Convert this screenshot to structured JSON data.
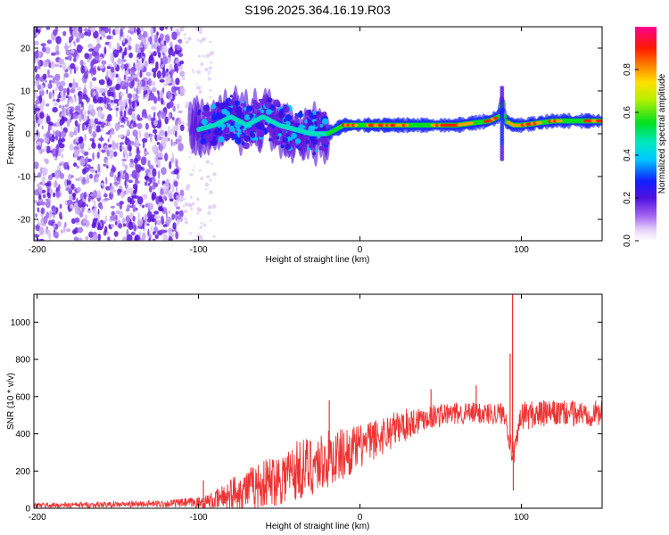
{
  "title": "S196.2025.364.16.19.R03",
  "chart_data": [
    {
      "type": "heatmap",
      "name": "spectrogram",
      "xlabel": "Height of straight line (km)",
      "ylabel": "Frequency (Hz)",
      "xlim": [
        -202,
        150
      ],
      "ylim": [
        -25,
        25
      ],
      "xticks": [
        -200,
        -100,
        0,
        100
      ],
      "yticks": [
        -20,
        -10,
        0,
        10,
        20
      ],
      "colorbar": {
        "label": "Normalized spectral amplitude",
        "range": [
          0,
          1
        ],
        "ticks": [
          0.0,
          0.2,
          0.4,
          0.6,
          0.8
        ],
        "tick_labels": [
          "0.0",
          "0.2",
          "0.4",
          "0.6",
          "0.8"
        ]
      },
      "ridge": {
        "x": [
          -100,
          -90,
          -80,
          -70,
          -60,
          -50,
          -40,
          -30,
          -20,
          -10,
          0,
          20,
          40,
          60,
          80,
          86,
          88,
          90,
          95,
          100,
          120,
          150
        ],
        "freq": [
          1,
          2,
          4,
          2,
          4,
          2,
          1,
          0,
          0,
          2,
          2,
          2,
          2,
          2,
          3,
          4,
          8,
          3,
          2,
          2,
          3,
          3
        ]
      },
      "noise_region": [
        -202,
        -110
      ]
    },
    {
      "type": "line",
      "name": "snr",
      "xlabel": "Height of straight line (km)",
      "ylabel": "SNR (10 * v/v)",
      "xlim": [
        -202,
        150
      ],
      "ylim": [
        0,
        1150
      ],
      "xticks": [
        -200,
        -100,
        0,
        100
      ],
      "yticks": [
        0,
        200,
        400,
        600,
        800,
        1000
      ],
      "color": "#ee3333",
      "envelope": {
        "x": [
          -202,
          -150,
          -120,
          -100,
          -90,
          -80,
          -60,
          -40,
          -20,
          0,
          20,
          40,
          60,
          80,
          90,
          94,
          96,
          100,
          120,
          150
        ],
        "base": [
          15,
          20,
          25,
          30,
          40,
          80,
          130,
          200,
          260,
          330,
          420,
          490,
          510,
          510,
          510,
          300,
          300,
          500,
          510,
          510
        ],
        "amp": [
          15,
          15,
          20,
          30,
          50,
          90,
          130,
          170,
          160,
          120,
          100,
          70,
          60,
          60,
          60,
          60,
          60,
          80,
          70,
          70
        ]
      },
      "spikes": [
        {
          "x": -97,
          "y": 150
        },
        {
          "x": -19,
          "y": 580
        },
        {
          "x": 44,
          "y": 640
        },
        {
          "x": 72,
          "y": 660
        },
        {
          "x": 93,
          "y": 830
        },
        {
          "x": 94.5,
          "y": 1150
        },
        {
          "x": 95,
          "y": 95
        },
        {
          "x": 96,
          "y": 300
        }
      ]
    }
  ]
}
